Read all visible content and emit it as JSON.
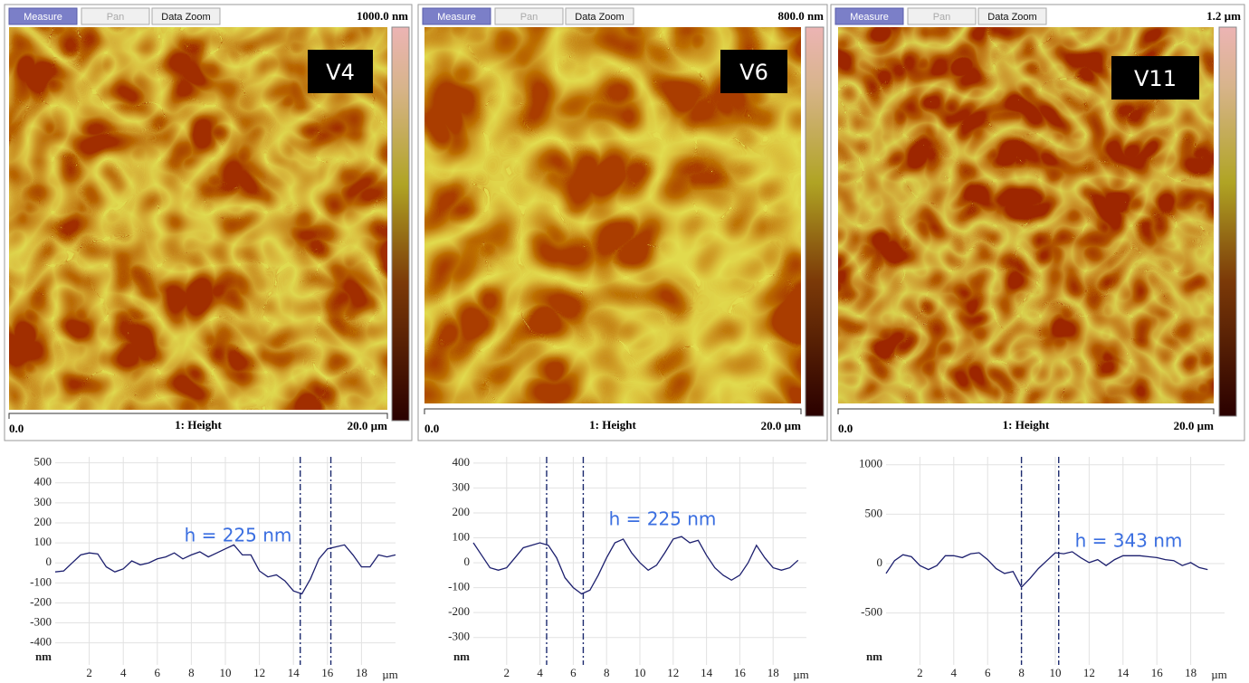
{
  "panels": [
    {
      "buttons": [
        "Measure",
        "Pan",
        "Data Zoom"
      ],
      "scale_max": "1000.0 nm",
      "label": "V4",
      "x_start": "0.0",
      "channel": "1: Height",
      "x_end": "20.0 µm"
    },
    {
      "buttons": [
        "Measure",
        "Pan",
        "Data Zoom"
      ],
      "scale_max": "800.0 nm",
      "label": "V6",
      "x_start": "0.0",
      "channel": "1: Height",
      "x_end": "20.0 µm"
    },
    {
      "buttons": [
        "Measure",
        "Pan",
        "Data Zoom"
      ],
      "scale_max": "1.2 µm",
      "label": "V11",
      "x_start": "0.0",
      "channel": "1: Height",
      "x_end": "20.0 µm"
    }
  ],
  "chart_data": [
    {
      "type": "line",
      "color": "#1c1f6e",
      "annotation": "h = 225 nm",
      "y_unit": "nm",
      "x_unit": "µm",
      "x": [
        0,
        0.5,
        1,
        1.5,
        2,
        2.5,
        3,
        3.5,
        4,
        4.5,
        5,
        5.5,
        6,
        6.5,
        7,
        7.5,
        8,
        8.5,
        9,
        9.5,
        10,
        10.5,
        11,
        11.5,
        12,
        12.5,
        13,
        13.5,
        14,
        14.5,
        15,
        15.5,
        16,
        16.5,
        17,
        17.5,
        18,
        18.5,
        19,
        19.5,
        20
      ],
      "values": [
        -45,
        -40,
        0,
        40,
        50,
        45,
        -20,
        -45,
        -30,
        10,
        -10,
        0,
        20,
        30,
        50,
        20,
        40,
        55,
        30,
        50,
        70,
        90,
        40,
        40,
        -40,
        -70,
        -60,
        -90,
        -140,
        -155,
        -80,
        20,
        70,
        80,
        90,
        40,
        -20,
        -20,
        40,
        30,
        40
      ],
      "markers": [
        14.4,
        16.2
      ],
      "xlim": [
        0,
        20
      ],
      "ylim": [
        -510,
        530
      ],
      "xticks": [
        2,
        4,
        6,
        8,
        10,
        12,
        14,
        16,
        18
      ],
      "yticks": [
        500,
        400,
        300,
        200,
        100,
        0,
        -100,
        -200,
        -300,
        -400
      ],
      "grid": true
    },
    {
      "type": "line",
      "color": "#1c1f6e",
      "annotation": "h = 225 nm",
      "y_unit": "nm",
      "x_unit": "µm",
      "x": [
        0,
        0.5,
        1,
        1.5,
        2,
        2.5,
        3,
        3.5,
        4,
        4.5,
        5,
        5.5,
        6,
        6.5,
        7,
        7.5,
        8,
        8.5,
        9,
        9.5,
        10,
        10.5,
        11,
        11.5,
        12,
        12.5,
        13,
        13.5,
        14,
        14.5,
        15,
        15.5,
        16,
        16.5,
        17,
        17.5,
        18,
        18.5,
        19,
        19.5
      ],
      "values": [
        80,
        30,
        -20,
        -30,
        -20,
        20,
        60,
        70,
        80,
        70,
        20,
        -60,
        -100,
        -125,
        -110,
        -50,
        20,
        80,
        95,
        40,
        0,
        -30,
        -10,
        40,
        95,
        105,
        80,
        90,
        30,
        -20,
        -50,
        -70,
        -50,
        0,
        70,
        20,
        -20,
        -30,
        -20,
        10
      ],
      "markers": [
        4.4,
        6.6
      ],
      "xlim": [
        0,
        20
      ],
      "ylim": [
        -410,
        425
      ],
      "xticks": [
        2,
        4,
        6,
        8,
        10,
        12,
        14,
        16,
        18
      ],
      "yticks": [
        400,
        300,
        200,
        100,
        0,
        -100,
        -200,
        -300
      ],
      "grid": true
    },
    {
      "type": "line",
      "color": "#1c1f6e",
      "annotation": "h = 343 nm",
      "y_unit": "nm",
      "x_unit": "µm",
      "x": [
        0,
        0.5,
        1,
        1.5,
        2,
        2.5,
        3,
        3.5,
        4,
        4.5,
        5,
        5.5,
        6,
        6.5,
        7,
        7.5,
        8,
        8.5,
        9,
        9.5,
        10,
        10.5,
        11,
        11.5,
        12,
        12.5,
        13,
        13.5,
        14,
        14.5,
        15,
        15.5,
        16,
        16.5,
        17,
        17.5,
        18,
        18.5,
        19
      ],
      "values": [
        -100,
        30,
        90,
        70,
        -20,
        -60,
        -20,
        80,
        80,
        60,
        100,
        110,
        40,
        -50,
        -100,
        -80,
        -240,
        -150,
        -50,
        30,
        110,
        100,
        120,
        60,
        10,
        40,
        -20,
        40,
        80,
        80,
        80,
        70,
        60,
        40,
        30,
        -20,
        10,
        -40,
        -60
      ],
      "markers": [
        8.0,
        10.2
      ],
      "xlim": [
        0,
        20
      ],
      "ylim": [
        -1025,
        1080
      ],
      "xticks": [
        2,
        4,
        6,
        8,
        10,
        12,
        14,
        16,
        18
      ],
      "yticks": [
        1000,
        500,
        0,
        -500
      ],
      "grid": true
    }
  ]
}
